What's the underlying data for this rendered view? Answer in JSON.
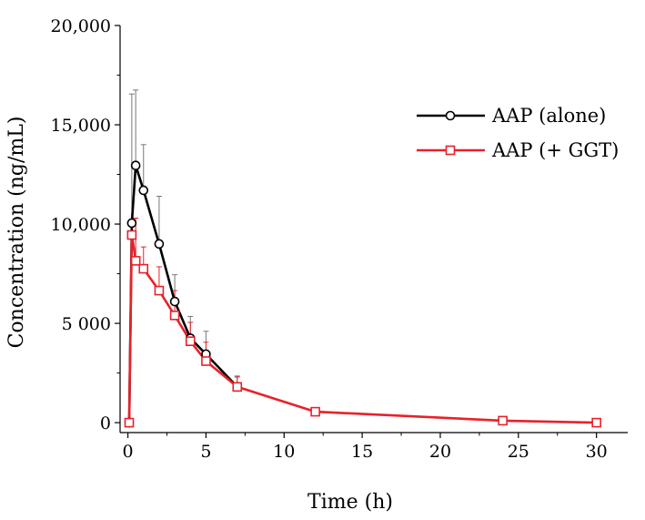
{
  "chart_data": {
    "type": "line",
    "title": "",
    "xlabel": "Time (h)",
    "ylabel": "Concentration (ng/mL)",
    "xlim": [
      -0.5,
      32
    ],
    "ylim": [
      -500,
      20000
    ],
    "x_ticks": [
      0,
      5,
      10,
      15,
      20,
      25,
      30
    ],
    "x_tick_labels": [
      "0",
      "5",
      "10",
      "15",
      "20",
      "25",
      "30"
    ],
    "y_ticks": [
      0,
      5000,
      10000,
      15000,
      20000
    ],
    "y_tick_labels": [
      "0",
      "5 000",
      "10,000",
      "15,000",
      "20,000"
    ],
    "legend_position": "top-right",
    "series": [
      {
        "name": "AAP (alone)",
        "color": "#000000",
        "marker": "circle",
        "x": [
          0.083,
          0.25,
          0.5,
          1,
          2,
          3,
          4,
          5,
          7
        ],
        "y": [
          0,
          10050,
          12950,
          11700,
          9000,
          6100,
          4250,
          3450,
          1800
        ],
        "error": [
          0,
          6500,
          3800,
          2300,
          2400,
          1350,
          1100,
          1150,
          550
        ]
      },
      {
        "name": "AAP (+ GGT)",
        "color": "#e8212a",
        "marker": "square",
        "x": [
          0.083,
          0.25,
          0.5,
          1,
          2,
          3,
          4,
          5,
          7,
          12,
          24,
          30
        ],
        "y": [
          0,
          9450,
          8150,
          7750,
          6650,
          5400,
          4100,
          3100,
          1800,
          550,
          100,
          0
        ],
        "error": [
          0,
          0,
          2150,
          1100,
          1200,
          1250,
          950,
          950,
          500,
          200,
          80,
          40
        ]
      }
    ]
  }
}
